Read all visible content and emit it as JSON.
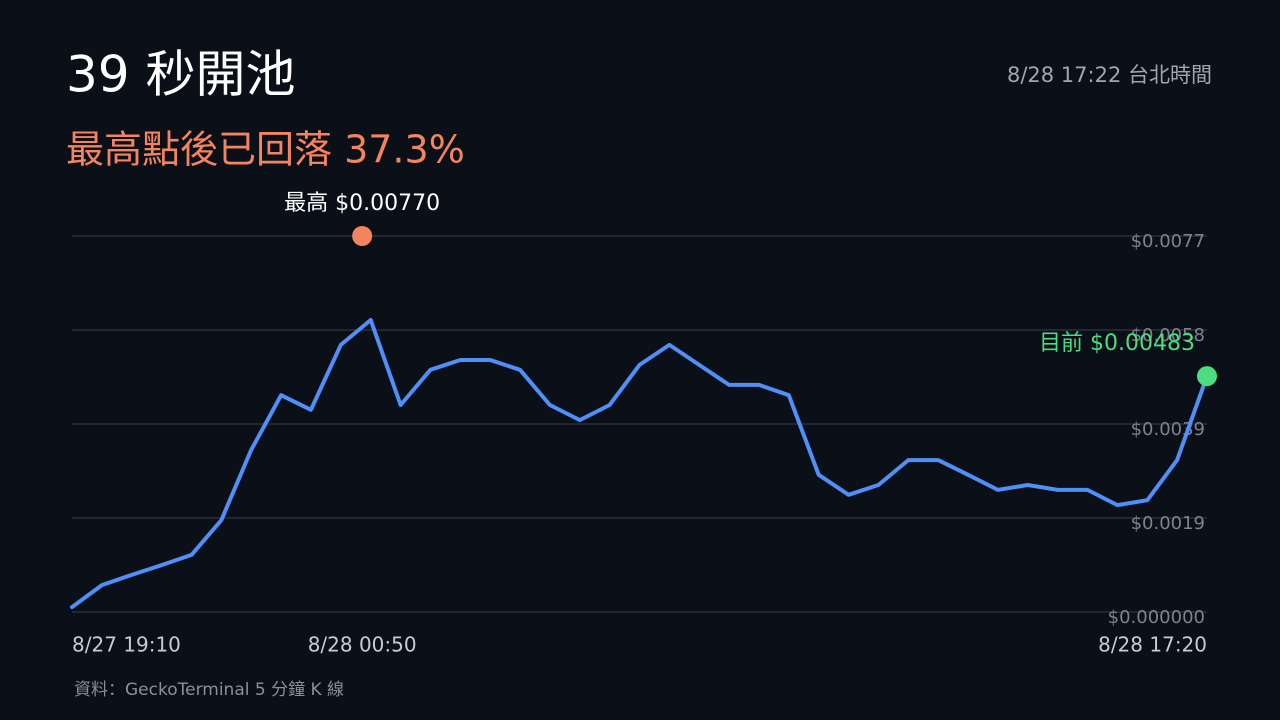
{
  "chart_data": {
    "type": "line",
    "title": "39 秒開池",
    "subtitle": "最高點後已回落 37.3%",
    "timestamp": "8/28 17:22 台北時間",
    "source": "資料：GeckoTerminal 5 分鐘 K 線",
    "x": [
      "8/27 19:10",
      "8/27 19:45",
      "8/27 20:20",
      "8/27 20:55",
      "8/27 21:30",
      "8/27 22:05",
      "8/27 22:40",
      "8/27 23:15",
      "8/27 23:50",
      "8/28 00:25",
      "8/28 01:00",
      "8/28 01:35",
      "8/28 02:10",
      "8/28 02:45",
      "8/28 03:20",
      "8/28 03:55",
      "8/28 04:30",
      "8/28 05:05",
      "8/28 05:40",
      "8/28 06:15",
      "8/28 06:50",
      "8/28 07:25",
      "8/28 08:00",
      "8/28 08:35",
      "8/28 09:10",
      "8/28 09:45",
      "8/28 10:20",
      "8/28 10:55",
      "8/28 11:30",
      "8/28 12:05",
      "8/28 12:40",
      "8/28 13:15",
      "8/28 13:50",
      "8/28 14:25",
      "8/28 15:00",
      "8/28 15:35",
      "8/28 16:10",
      "8/28 16:45",
      "8/28 17:20"
    ],
    "series": [
      {
        "color": "#4f8ff7",
        "values": [
          0.0001,
          0.00055,
          0.00076,
          0.00096,
          0.00117,
          0.00188,
          0.00332,
          0.00444,
          0.00414,
          0.00547,
          0.00598,
          0.00424,
          0.00496,
          0.00516,
          0.00516,
          0.00496,
          0.00424,
          0.00393,
          0.00424,
          0.00506,
          0.00547,
          0.00506,
          0.00465,
          0.00465,
          0.00444,
          0.00281,
          0.0024,
          0.0026,
          0.00311,
          0.00311,
          0.00281,
          0.0025,
          0.0026,
          0.0025,
          0.0025,
          0.00219,
          0.00229,
          0.00311,
          0.00483
        ]
      }
    ],
    "annotations": [
      {
        "label": "最高 $0.00770",
        "x": "8/28 00:50",
        "value": 0.0077,
        "color": "#f4845f"
      },
      {
        "label": "目前 $0.00483",
        "x": "8/28 17:20",
        "value": 0.00483,
        "color": "#4ade80"
      }
    ],
    "xlim": [
      "8/27 19:10",
      "8/28 17:20"
    ],
    "xticks": [
      "8/27 19:10",
      "8/28 00:50",
      "8/28 17:20"
    ],
    "ylim": [
      0,
      0.0077
    ],
    "yticks": [
      {
        "value": 0,
        "label": "$0.000000"
      },
      {
        "value": 0.001925,
        "label": "$0.0019"
      },
      {
        "value": 0.00385,
        "label": "$0.0039"
      },
      {
        "value": 0.005775,
        "label": "$0.0058"
      },
      {
        "value": 0.0077,
        "label": "$0.0077"
      }
    ],
    "grid": true
  }
}
